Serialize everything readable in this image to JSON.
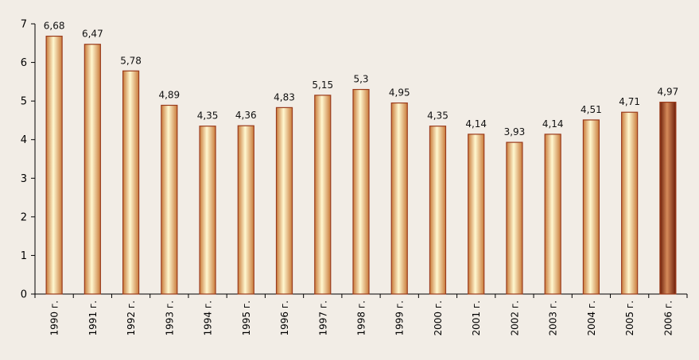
{
  "chart_data": {
    "type": "bar",
    "categories": [
      "1990 г.",
      "1991 г.",
      "1992 г.",
      "1993 г.",
      "1994 г.",
      "1995 г.",
      "1996 г.",
      "1997 г.",
      "1998 г.",
      "1999 г.",
      "2000 г.",
      "2001 г.",
      "2002 г.",
      "2003 г.",
      "2004 г.",
      "2005 г.",
      "2006 г."
    ],
    "values": [
      6.68,
      6.47,
      5.78,
      4.89,
      4.35,
      4.36,
      4.83,
      5.15,
      5.3,
      4.95,
      4.35,
      4.14,
      3.93,
      4.14,
      4.51,
      4.71,
      4.97
    ],
    "value_labels": [
      "6,68",
      "6,47",
      "5,78",
      "4,89",
      "4,35",
      "4,36",
      "4,83",
      "5,15",
      "5,3",
      "4,95",
      "4,35",
      "4,14",
      "3,93",
      "4,14",
      "4,51",
      "4,71",
      "4,97"
    ],
    "y_ticks": [
      "0",
      "1",
      "2",
      "3",
      "4",
      "5",
      "6",
      "7"
    ],
    "ylim": [
      0,
      7
    ],
    "highlight_index": 16,
    "grid": false,
    "colors": {
      "background": "#f2ede6",
      "bar_edge": "#9a3b1c",
      "bar_light": "#fff8d0",
      "bar_dark": "#c97a3a",
      "highlight_light": "#d58a5a",
      "highlight_dark": "#6e1e0a",
      "axis": "#000000"
    }
  }
}
